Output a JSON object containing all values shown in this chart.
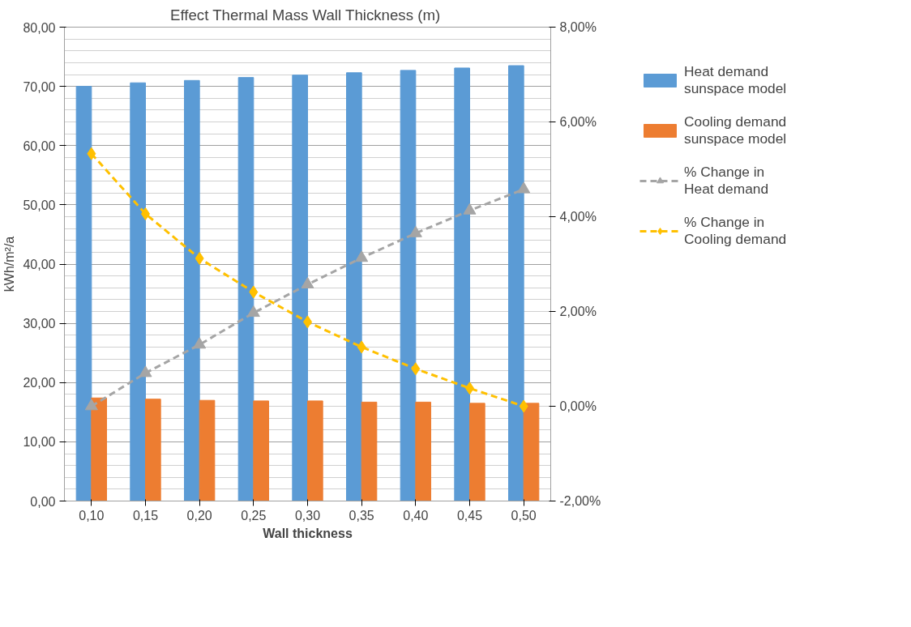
{
  "chart_data": {
    "type": "bar",
    "title": "Effect Thermal Mass Wall Thickness  (m)",
    "xlabel": "Wall thickness",
    "ylabel": "kWh/m²/a",
    "categories": [
      "0,10",
      "0,15",
      "0,20",
      "0,25",
      "0,30",
      "0,35",
      "0,40",
      "0,45",
      "0,50"
    ],
    "series": [
      {
        "name": "Heat demand sunspace model",
        "color": "#5b9bd5",
        "values": [
          70.0,
          70.6,
          71.0,
          71.5,
          71.9,
          72.3,
          72.7,
          73.1,
          73.5
        ]
      },
      {
        "name": "Cooling demand sunspace model",
        "color": "#ed7d31",
        "values": [
          17.4,
          17.2,
          17.0,
          16.9,
          16.9,
          16.7,
          16.7,
          16.5,
          16.5
        ]
      },
      {
        "name": "% Change in Heat demand",
        "type": "line",
        "axis": "y2",
        "color": "#a5a5a5",
        "marker": "triangle",
        "line_style": "dashed",
        "values": [
          0.0,
          0.7,
          1.3,
          1.97,
          2.57,
          3.13,
          3.65,
          4.13,
          4.58
        ]
      },
      {
        "name": "% Change in Cooling demand",
        "type": "line",
        "axis": "y2",
        "color": "#ffc000",
        "marker": "diamond",
        "line_style": "dashed",
        "values": [
          5.33,
          4.06,
          3.12,
          2.41,
          1.78,
          1.25,
          0.79,
          0.38,
          0.0
        ]
      }
    ],
    "ylim": [
      0,
      80
    ],
    "yticks": [
      {
        "value": 0,
        "label": "0,00"
      },
      {
        "value": 10,
        "label": "10,00"
      },
      {
        "value": 20,
        "label": "20,00"
      },
      {
        "value": 30,
        "label": "30,00"
      },
      {
        "value": 40,
        "label": "40,00"
      },
      {
        "value": 50,
        "label": "50,00"
      },
      {
        "value": 60,
        "label": "60,00"
      },
      {
        "value": 70,
        "label": "70,00"
      },
      {
        "value": 80,
        "label": "80,00"
      }
    ],
    "y2lim": [
      -2,
      8
    ],
    "y2ticks": [
      {
        "value": -2,
        "label": "-2,00%"
      },
      {
        "value": 0,
        "label": "0,00%"
      },
      {
        "value": 2,
        "label": "2,00%"
      },
      {
        "value": 4,
        "label": "4,00%"
      },
      {
        "value": 6,
        "label": "6,00%"
      },
      {
        "value": 8,
        "label": "8,00%"
      }
    ],
    "grid": "y",
    "legend": "right"
  }
}
